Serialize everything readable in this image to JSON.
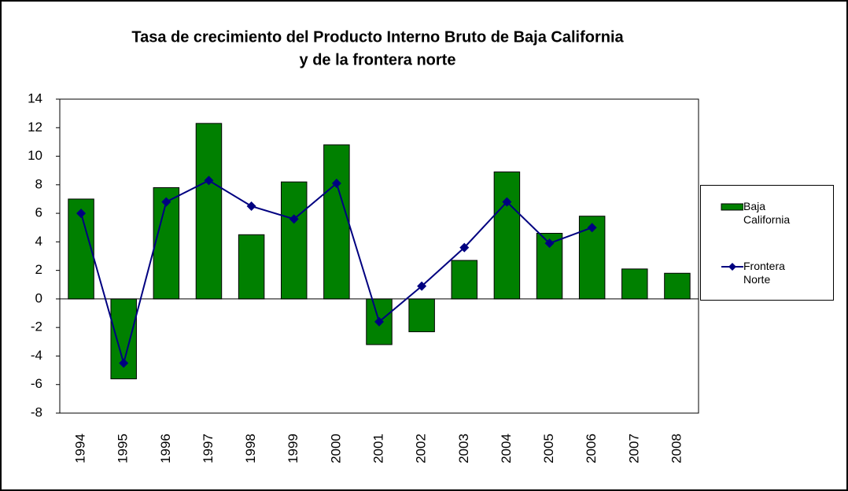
{
  "chart_data": {
    "type": "bar_line",
    "title": [
      "Tasa de crecimiento del Producto Interno Bruto de Baja California",
      "y de la frontera norte"
    ],
    "categories": [
      "1994",
      "1995",
      "1996",
      "1997",
      "1998",
      "1999",
      "2000",
      "2001",
      "2002",
      "2003",
      "2004",
      "2005",
      "2006",
      "2007",
      "2008"
    ],
    "series": [
      {
        "name": "Baja California",
        "type": "bar",
        "color": "#008000",
        "values": [
          7.0,
          -5.6,
          7.8,
          12.3,
          4.5,
          8.2,
          10.8,
          -3.2,
          -2.3,
          2.7,
          8.9,
          4.6,
          5.8,
          2.1,
          1.8
        ]
      },
      {
        "name": "Frontera Norte",
        "type": "line",
        "color": "#000080",
        "values": [
          6.0,
          -4.5,
          6.8,
          8.3,
          6.5,
          5.6,
          8.1,
          -1.6,
          0.9,
          3.6,
          6.8,
          3.9,
          5.0,
          null,
          null
        ]
      }
    ],
    "ylim": [
      -8,
      14
    ],
    "yticks": [
      -8,
      -6,
      -4,
      -2,
      0,
      2,
      4,
      6,
      8,
      10,
      12,
      14
    ],
    "grid": false,
    "legend": "right"
  }
}
